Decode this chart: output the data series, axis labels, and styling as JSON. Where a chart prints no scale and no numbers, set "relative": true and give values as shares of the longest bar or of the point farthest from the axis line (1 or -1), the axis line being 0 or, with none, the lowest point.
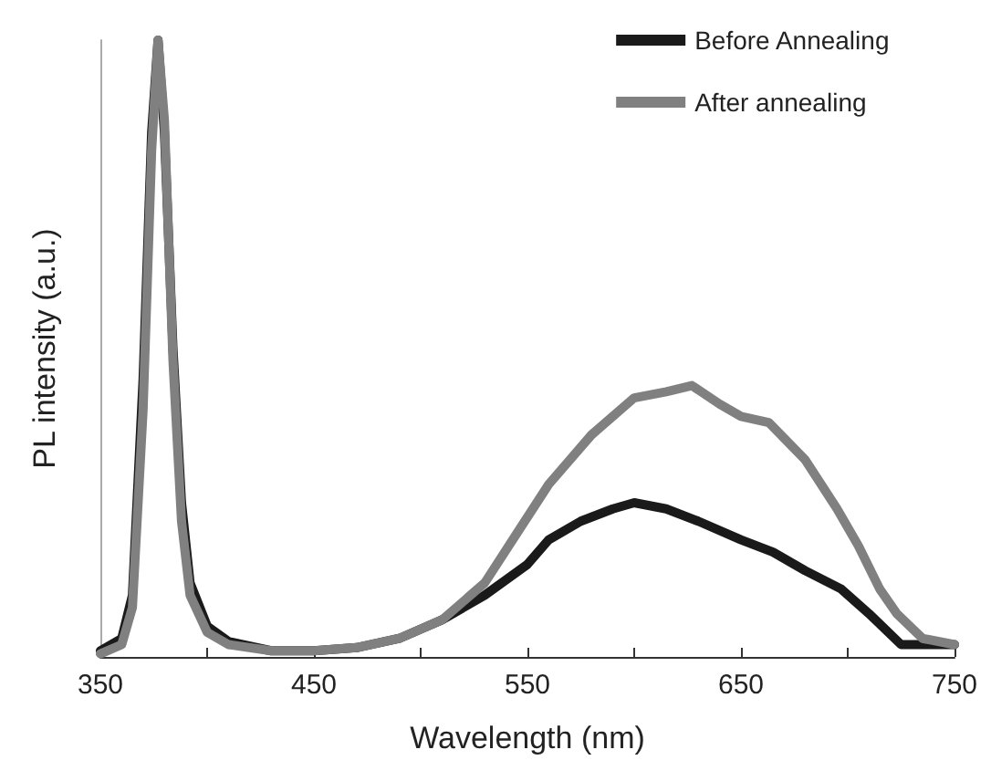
{
  "chart_data": {
    "type": "line",
    "relative": true,
    "xlabel": "Wavelength (nm)",
    "ylabel": "PL intensity (a.u.)",
    "xlim": [
      350,
      750
    ],
    "xticks": [
      350,
      {
        "value": 400,
        "label": null
      },
      450,
      {
        "value": 500,
        "label": null
      },
      550,
      {
        "value": 600,
        "label": null
      },
      650,
      {
        "value": 700,
        "label": null
      },
      750
    ],
    "grid": false,
    "legend": "top right",
    "marker": "none",
    "line_style": "solid",
    "series": [
      {
        "name": "Before Annealing",
        "color": "#1a1a1a",
        "x": [
          350,
          360,
          365,
          370,
          374,
          377,
          380,
          384,
          388,
          392,
          400,
          410,
          430,
          450,
          470,
          490,
          510,
          530,
          550,
          560,
          575,
          590,
          600,
          615,
          630,
          650,
          665,
          680,
          697,
          710,
          725,
          740,
          750
        ],
        "values": [
          0.01,
          0.03,
          0.1,
          0.45,
          0.85,
          1.0,
          0.85,
          0.5,
          0.25,
          0.12,
          0.05,
          0.025,
          0.01,
          0.01,
          0.015,
          0.03,
          0.06,
          0.1,
          0.15,
          0.19,
          0.22,
          0.24,
          0.25,
          0.24,
          0.22,
          0.19,
          0.17,
          0.14,
          0.11,
          0.07,
          0.02,
          0.02,
          0.02
        ]
      },
      {
        "name": "After annealing",
        "color": "#808080",
        "x": [
          350,
          360,
          365,
          370,
          374,
          377,
          380,
          384,
          388,
          392,
          400,
          410,
          430,
          450,
          470,
          490,
          510,
          530,
          545,
          560,
          580,
          600,
          615,
          627,
          640,
          650,
          663,
          680,
          695,
          705,
          715,
          723,
          735,
          750
        ],
        "values": [
          0.005,
          0.02,
          0.08,
          0.4,
          0.82,
          1.0,
          0.87,
          0.48,
          0.22,
          0.1,
          0.04,
          0.02,
          0.01,
          0.01,
          0.015,
          0.03,
          0.06,
          0.12,
          0.2,
          0.28,
          0.36,
          0.42,
          0.43,
          0.44,
          0.41,
          0.39,
          0.38,
          0.32,
          0.24,
          0.18,
          0.11,
          0.07,
          0.03,
          0.02
        ]
      }
    ]
  }
}
